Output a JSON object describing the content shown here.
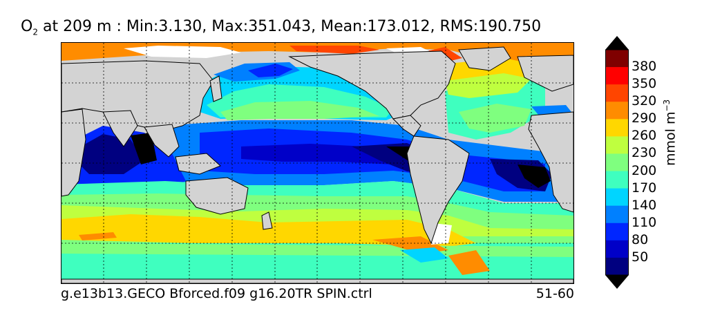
{
  "title": {
    "species": "O",
    "species_sub": "2",
    "rest": " at 209 m : Min:3.130, Max:351.043, Mean:173.012, RMS:190.750"
  },
  "map": {
    "land_color": "#d3d3d3",
    "missing_color": "#ffffff",
    "gridlines": "dotted"
  },
  "footer": {
    "run_label": "g.e13b13.GECO Bforced.f09 g16.20TR SPIN.ctrl",
    "years_label": "51-60"
  },
  "colorbar": {
    "units": "mmol m",
    "units_sup": "−3",
    "ticks": [
      "380",
      "350",
      "320",
      "290",
      "260",
      "230",
      "200",
      "170",
      "140",
      "110",
      "80",
      "50"
    ],
    "levels": [
      {
        "value": 395,
        "color": "#7f0000"
      },
      {
        "value": 365,
        "color": "#ff0000"
      },
      {
        "value": 335,
        "color": "#ff4500"
      },
      {
        "value": 305,
        "color": "#ff8c00"
      },
      {
        "value": 275,
        "color": "#ffd700"
      },
      {
        "value": 245,
        "color": "#bfff3f"
      },
      {
        "value": 215,
        "color": "#7fff7f"
      },
      {
        "value": 185,
        "color": "#3fffbf"
      },
      {
        "value": 155,
        "color": "#00d5ff"
      },
      {
        "value": 125,
        "color": "#0080ff"
      },
      {
        "value": 95,
        "color": "#0026ff"
      },
      {
        "value": 65,
        "color": "#0000c8"
      },
      {
        "value": 35,
        "color": "#000080"
      }
    ],
    "under_color": "#000000",
    "over_color": "#000000"
  }
}
